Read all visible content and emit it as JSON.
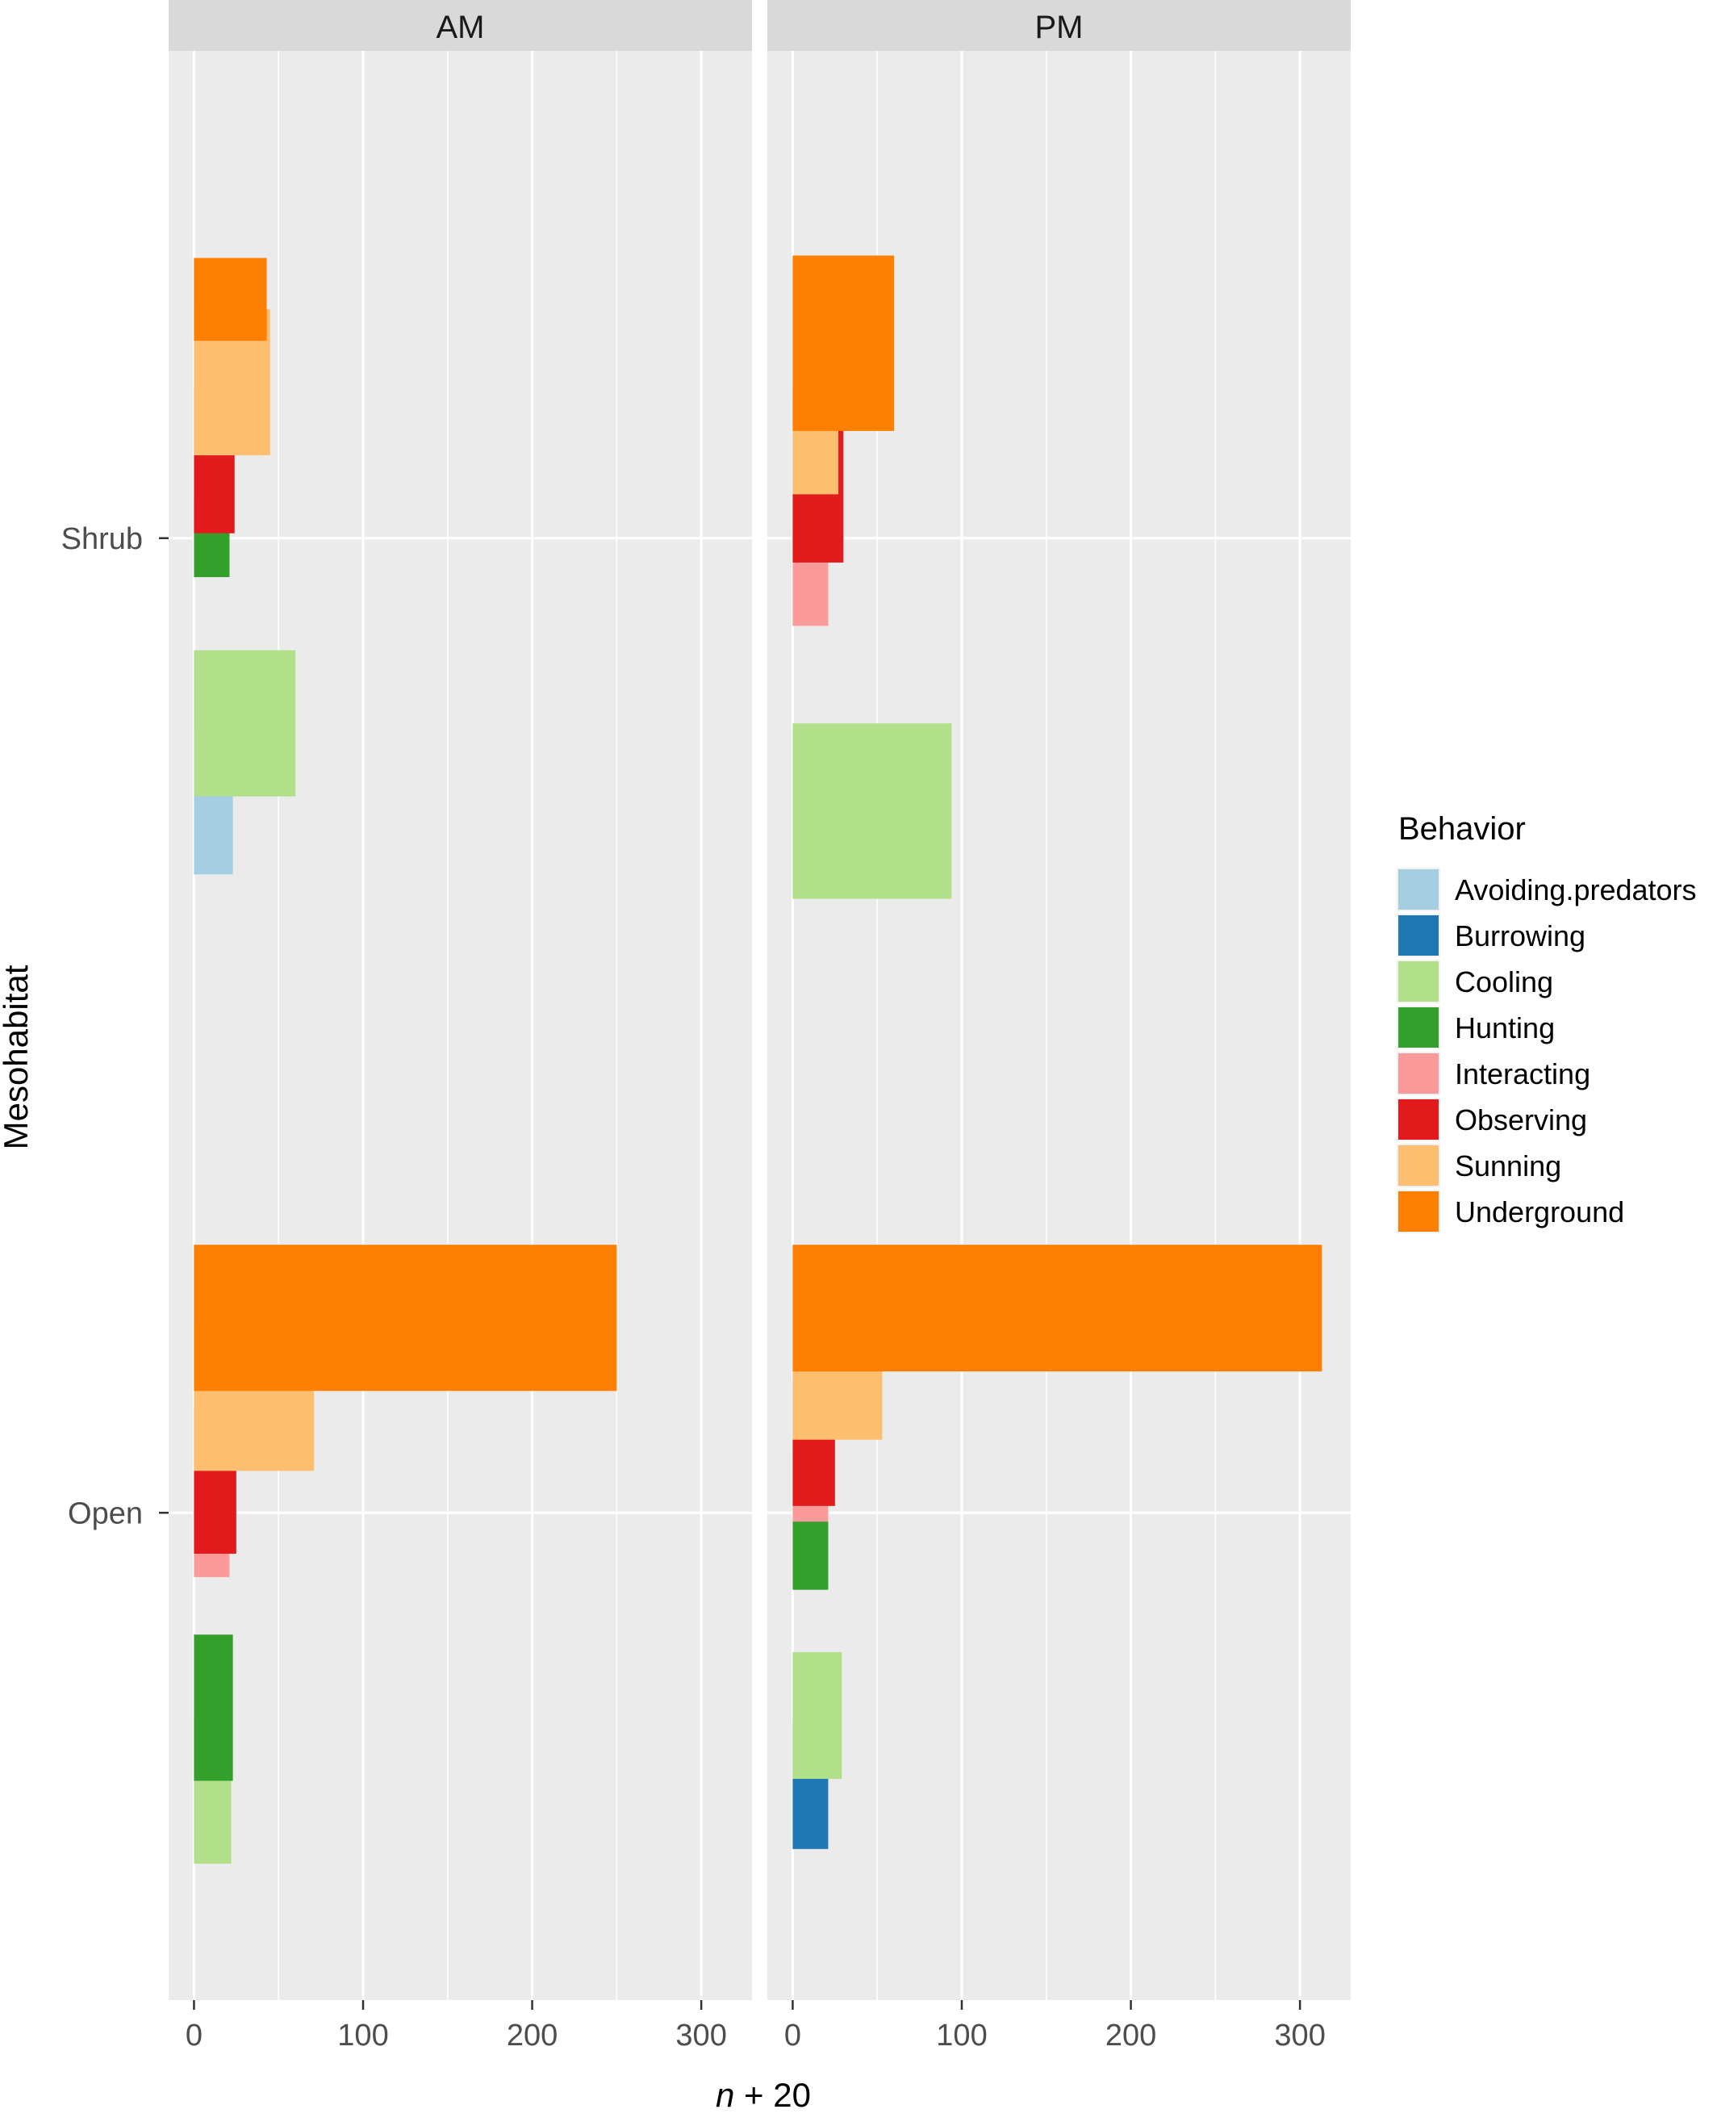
{
  "chart_data": {
    "type": "bar",
    "orientation": "horizontal",
    "xlabel_italic": "n",
    "xlabel_rest": " + 20",
    "ylabel": "Mesohabitat",
    "xlim": [
      -15,
      330
    ],
    "x_ticks": [
      0,
      100,
      200,
      300
    ],
    "x_tick_labels": [
      "0",
      "100",
      "200",
      "300"
    ],
    "categories": [
      "Shrub",
      "Open"
    ],
    "grid": true,
    "legend": {
      "title": "Behavior",
      "placement": "right",
      "items": [
        {
          "label": "Avoiding.predators",
          "color": "#A6CEE3"
        },
        {
          "label": "Burrowing",
          "color": "#1F78B4"
        },
        {
          "label": "Cooling",
          "color": "#B2DF8A"
        },
        {
          "label": "Hunting",
          "color": "#33A02C"
        },
        {
          "label": "Interacting",
          "color": "#FB9A99"
        },
        {
          "label": "Observing",
          "color": "#E31A1C"
        },
        {
          "label": "Sunning",
          "color": "#FDBF6F"
        },
        {
          "label": "Underground",
          "color": "#FF7F00"
        }
      ]
    },
    "panels": [
      {
        "label": "AM",
        "groups": [
          {
            "category": "Shrub",
            "bars": [
              {
                "behavior": "Avoiding.predators",
                "value": 23,
                "y_center": -0.27,
                "height": 0.15
              },
              {
                "behavior": "Cooling",
                "value": 60,
                "y_center": -0.19,
                "height": 0.15
              },
              {
                "behavior": "Hunting",
                "value": 21,
                "y_center": 0.0,
                "height": 0.08
              },
              {
                "behavior": "Observing",
                "value": 24,
                "y_center": 0.08,
                "height": 0.15
              },
              {
                "behavior": "Sunning",
                "value": 45,
                "y_center": 0.16,
                "height": 0.15
              },
              {
                "behavior": "Underground",
                "value": 43,
                "y_center": 0.245,
                "height": 0.085
              }
            ]
          },
          {
            "category": "Open",
            "bars": [
              {
                "behavior": "Cooling",
                "value": 22,
                "y_center": -0.285,
                "height": 0.15
              },
              {
                "behavior": "Hunting",
                "value": 23,
                "y_center": -0.2,
                "height": 0.15
              },
              {
                "behavior": "Interacting",
                "value": 21,
                "y_center": -0.033,
                "height": 0.066
              },
              {
                "behavior": "Observing",
                "value": 25,
                "y_center": 0.033,
                "height": 0.15
              },
              {
                "behavior": "Sunning",
                "value": 71,
                "y_center": 0.118,
                "height": 0.15
              },
              {
                "behavior": "Underground",
                "value": 250,
                "y_center": 0.2,
                "height": 0.15
              }
            ]
          }
        ]
      },
      {
        "label": "PM",
        "groups": [
          {
            "category": "Shrub",
            "bars": [
              {
                "behavior": "Cooling",
                "value": 94,
                "y_center": -0.28,
                "height": 0.18
              },
              {
                "behavior": "Interacting",
                "value": 21,
                "y_center": -0.04,
                "height": 0.1
              },
              {
                "behavior": "Observing",
                "value": 30,
                "y_center": 0.065,
                "height": 0.18
              },
              {
                "behavior": "Sunning",
                "value": 27,
                "y_center": 0.095,
                "height": 0.1
              },
              {
                "behavior": "Underground",
                "value": 60,
                "y_center": 0.2,
                "height": 0.18
              }
            ]
          },
          {
            "category": "Open",
            "bars": [
              {
                "behavior": "Burrowing",
                "value": 21,
                "y_center": -0.28,
                "height": 0.13
              },
              {
                "behavior": "Cooling",
                "value": 29,
                "y_center": -0.208,
                "height": 0.13
              },
              {
                "behavior": "Hunting",
                "value": 21,
                "y_center": -0.044,
                "height": 0.07
              },
              {
                "behavior": "Interacting",
                "value": 21,
                "y_center": 0.026,
                "height": 0.07
              },
              {
                "behavior": "Observing",
                "value": 25,
                "y_center": 0.072,
                "height": 0.13
              },
              {
                "behavior": "Sunning",
                "value": 53,
                "y_center": 0.14,
                "height": 0.13
              },
              {
                "behavior": "Underground",
                "value": 313,
                "y_center": 0.21,
                "height": 0.13
              }
            ]
          }
        ]
      }
    ]
  }
}
